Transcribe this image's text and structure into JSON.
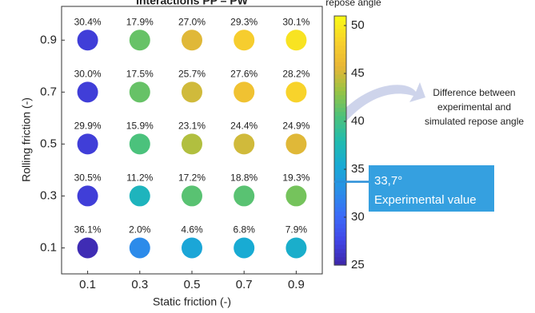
{
  "chart_data": {
    "type": "scatter",
    "title": "Interactions PP – PW",
    "x_label": "Static friction (-)",
    "y_label": "Rolling friction (-)",
    "colorbar_label": "repose angle",
    "x": [
      0.1,
      0.3,
      0.5,
      0.7,
      0.9,
      0.1,
      0.3,
      0.5,
      0.7,
      0.9,
      0.1,
      0.3,
      0.5,
      0.7,
      0.9,
      0.1,
      0.3,
      0.5,
      0.7,
      0.9,
      0.1,
      0.3,
      0.5,
      0.7,
      0.9
    ],
    "y": [
      0.9,
      0.9,
      0.9,
      0.9,
      0.9,
      0.7,
      0.7,
      0.7,
      0.7,
      0.7,
      0.5,
      0.5,
      0.5,
      0.5,
      0.5,
      0.3,
      0.3,
      0.3,
      0.3,
      0.3,
      0.1,
      0.1,
      0.1,
      0.1,
      0.1
    ],
    "color_values": [
      27,
      41.5,
      45.5,
      48,
      49.5,
      27,
      41.5,
      45,
      47,
      48.5,
      27,
      40.5,
      44,
      45,
      45.5,
      27,
      37,
      41,
      41,
      42,
      25.5,
      32.5,
      35,
      35.5,
      36
    ],
    "values": [
      30.4,
      17.9,
      27.0,
      29.3,
      30.1,
      30.0,
      17.5,
      25.7,
      27.6,
      28.2,
      29.9,
      15.9,
      23.1,
      24.4,
      24.9,
      30.5,
      11.2,
      17.2,
      18.8,
      19.3,
      36.1,
      2.0,
      4.6,
      6.8,
      7.9
    ],
    "value_labels": [
      "30.4%",
      "17.9%",
      "27.0%",
      "29.3%",
      "30.1%",
      "30.0%",
      "17.5%",
      "25.7%",
      "27.6%",
      "28.2%",
      "29.9%",
      "15.9%",
      "23.1%",
      "24.4%",
      "24.9%",
      "30.5%",
      "11.2%",
      "17.2%",
      "18.8%",
      "19.3%",
      "36.1%",
      "2.0%",
      "4.6%",
      "6.8%",
      "7.9%"
    ],
    "xlim": [
      0,
      1
    ],
    "ylim": [
      0,
      1.03
    ],
    "xticks": [
      0.1,
      0.3,
      0.5,
      0.7,
      0.9
    ],
    "yticks": [
      0.1,
      0.3,
      0.5,
      0.7,
      0.9
    ],
    "clim": [
      25,
      51
    ],
    "cticks": [
      25,
      30,
      35,
      40,
      45,
      50
    ],
    "experimental_value": 33.7,
    "experimental_label": "33,7°",
    "experimental_text": "Experimental value",
    "annotation": [
      "Difference between",
      "experimental and",
      "simulated repose angle"
    ]
  }
}
